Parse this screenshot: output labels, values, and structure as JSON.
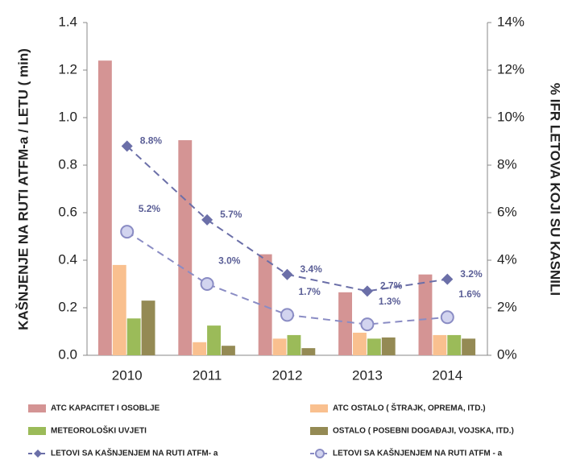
{
  "chart_data": {
    "type": "bar",
    "y_label": "KAŠNJENJE NA RUTI ATFM-a / LETU ( min)",
    "y2_label": "% IFR LETOVA KOJI SU KASNILI",
    "categories": [
      "2010",
      "2011",
      "2012",
      "2013",
      "2014"
    ],
    "ylim": [
      0,
      1.4
    ],
    "yticks": [
      {
        "value": 0,
        "label": "0.0"
      },
      0.2,
      0.4,
      0.6,
      0.8,
      {
        "value": 1,
        "label": "1.0"
      },
      1.2,
      1.4
    ],
    "y2lim": [
      0,
      14
    ],
    "y2ticks": [
      {
        "value": 0,
        "label": "0%"
      },
      {
        "value": 2,
        "label": "2%"
      },
      {
        "value": 4,
        "label": "4%"
      },
      {
        "value": 6,
        "label": "6%"
      },
      {
        "value": 8,
        "label": "8%"
      },
      {
        "value": 10,
        "label": "10%"
      },
      {
        "value": 12,
        "label": "12%"
      },
      {
        "value": 14,
        "label": "14%"
      }
    ],
    "series": [
      {
        "name": "ATC KAPACITET I OSOBLJE",
        "type": "bar",
        "color": "#d49494",
        "values": [
          1.24,
          0.905,
          0.425,
          0.265,
          0.34
        ]
      },
      {
        "name": "ATC OSTALO ( ŠTRAJK, OPREMA, ITD.)",
        "type": "bar",
        "color": "#f9c08f",
        "values": [
          0.38,
          0.055,
          0.07,
          0.095,
          0.085
        ]
      },
      {
        "name": "METEOROLOŠKI UVJETI",
        "type": "bar",
        "color": "#9bbb59",
        "values": [
          0.155,
          0.125,
          0.085,
          0.07,
          0.085
        ]
      },
      {
        "name": "OSTALO ( POSEBNI DOGAĐAJI, VOJSKA, ITD.)",
        "type": "bar",
        "color": "#948a54",
        "values": [
          0.23,
          0.04,
          0.03,
          0.075,
          0.07
        ]
      },
      {
        "name": "LETOVI SA KAŠNJENJEM NA RUTI ATFM- a",
        "type": "line",
        "axis": "y2",
        "marker": "diamond",
        "color": "#6b6fa8",
        "values": [
          8.8,
          5.7,
          3.4,
          2.7,
          3.2
        ],
        "value_labels": [
          "8.8%",
          "5.7%",
          "3.4%",
          "2.7%",
          "3.2%"
        ]
      },
      {
        "name": "LETOVI SA KAŠNJENJEM NA RUTI ATFM - a",
        "type": "line",
        "axis": "y2",
        "marker": "circle",
        "color": "#8a8cc4",
        "values": [
          5.2,
          3.0,
          1.7,
          1.3,
          1.6
        ],
        "value_labels": [
          "5.2%",
          "3.0%",
          "1.7%",
          "1.3%",
          "1.6%"
        ]
      }
    ]
  }
}
